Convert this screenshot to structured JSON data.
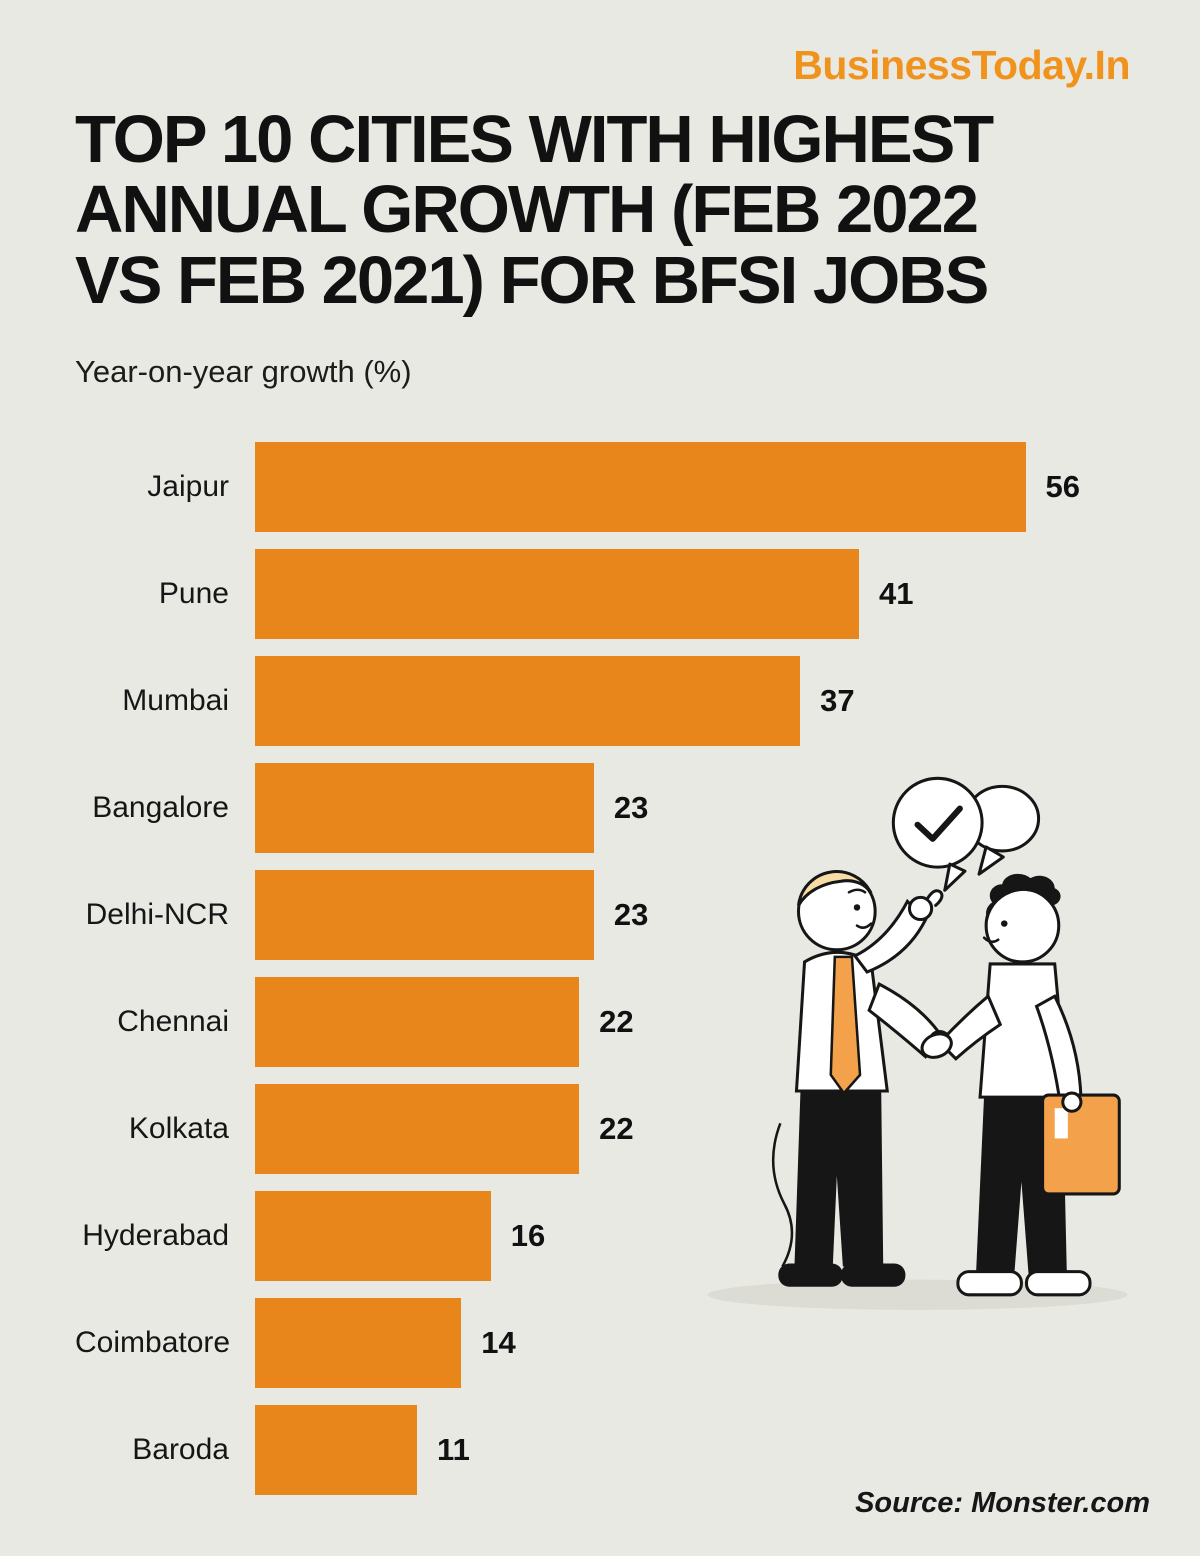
{
  "brand": "BusinessToday.In",
  "title_lines": [
    "TOP 10 CITIES WITH HIGHEST",
    "ANNUAL GROWTH (FEB 2022",
    "VS FEB 2021) FOR BFSI JOBS"
  ],
  "subtitle": "Year-on-year growth (%)",
  "source": "Source: Monster.com",
  "colors": {
    "bar": "#E8861C",
    "brand": "#F0931D",
    "background": "#E9E9E4",
    "text": "#141414",
    "illustration_accent": "#F4A14C"
  },
  "illustration": {
    "name": "two-people-handshake",
    "bubble_icon": "check"
  },
  "chart_data": {
    "type": "bar",
    "orientation": "horizontal",
    "title": "Top 10 cities with highest annual growth (Feb 2022 vs Feb 2021) for BFSI jobs",
    "xlabel": "Year-on-year growth (%)",
    "ylabel": "",
    "categories": [
      "Jaipur",
      "Pune",
      "Mumbai",
      "Bangalore",
      "Delhi-NCR",
      "Chennai",
      "Kolkata",
      "Hyderabad",
      "Coimbatore",
      "Baroda"
    ],
    "values": [
      56,
      41,
      37,
      23,
      23,
      22,
      22,
      16,
      14,
      11
    ],
    "xlim": [
      0,
      56
    ],
    "grid": false,
    "legend": null,
    "value_labels": true
  }
}
